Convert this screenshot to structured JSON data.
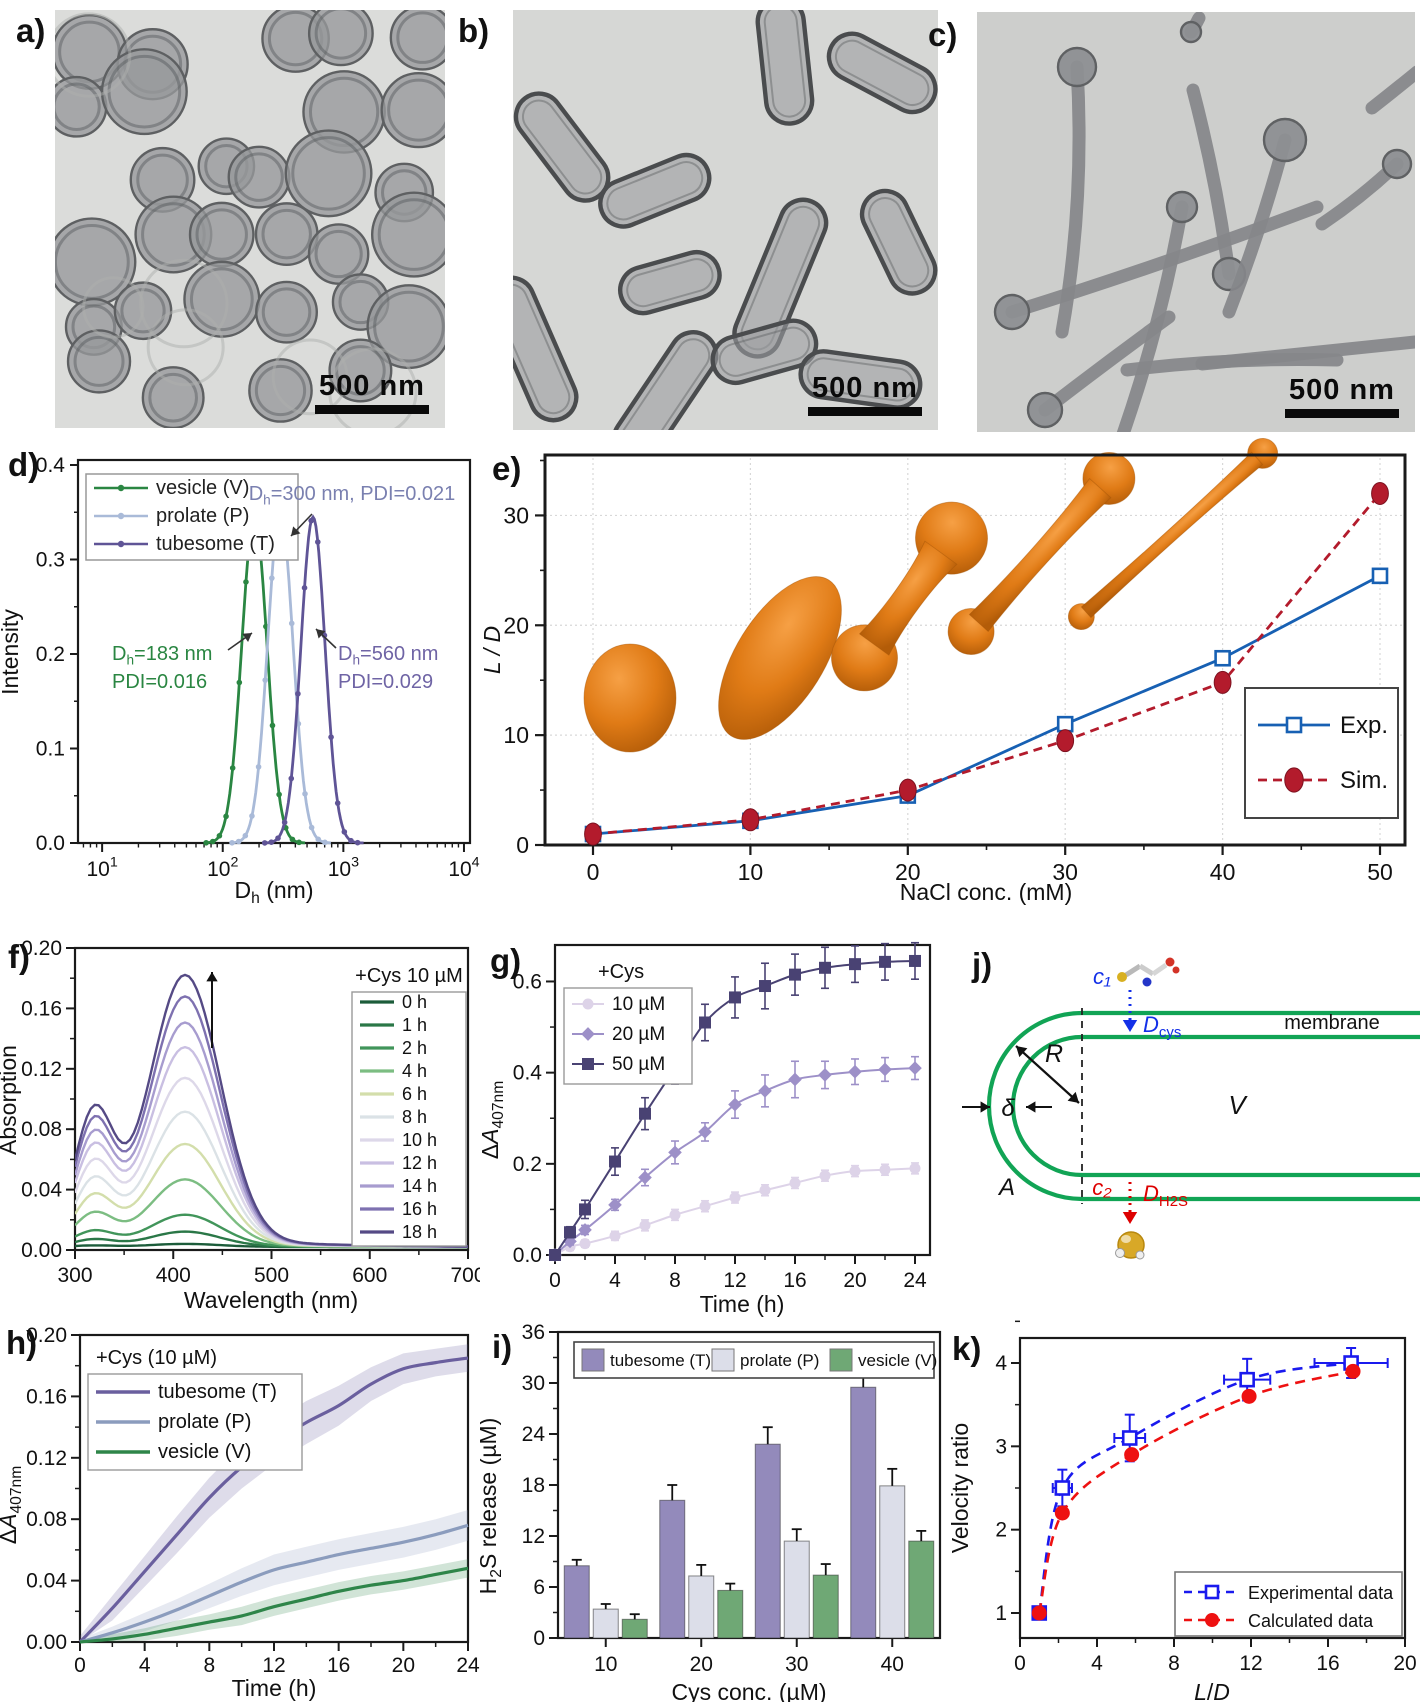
{
  "figure": {
    "panels": {
      "a": {
        "label": "a)",
        "scalebar": "500 nm"
      },
      "b": {
        "label": "b)",
        "scalebar": "500 nm"
      },
      "c": {
        "label": "c)",
        "scalebar": "500 nm"
      },
      "d": {
        "label": "d)"
      },
      "e": {
        "label": "e)"
      },
      "f": {
        "label": "f)"
      },
      "g": {
        "label": "g)"
      },
      "h": {
        "label": "h)"
      },
      "i": {
        "label": "i)"
      },
      "j": {
        "label": "j)"
      },
      "k": {
        "label": "k)"
      }
    }
  },
  "chart_data": [
    {
      "panel": "d",
      "type": "line",
      "xlabel_segments": [
        [
          "D"
        ],
        [
          "h",
          "sub"
        ],
        [
          " (nm)"
        ]
      ],
      "ylabel": "Intensity",
      "xscale": "log",
      "xtick_exponents": [
        1,
        2,
        3,
        4
      ],
      "yticks": [
        "0.0",
        "0.1",
        "0.2",
        "0.3",
        "0.4"
      ],
      "ylim": [
        0,
        0.4
      ],
      "legend_position": "top-left",
      "series": [
        {
          "name": "vesicle (V)",
          "color": "#2a8642",
          "Dh_nm": 183,
          "PDI": 0.016,
          "peak_intensity": 0.345,
          "sigma_log": 0.105
        },
        {
          "name": "prolate (P)",
          "color": "#a9bad8",
          "Dh_nm": 300,
          "PDI": 0.021,
          "peak_intensity": 0.35,
          "sigma_log": 0.105
        },
        {
          "name": "tubesome (T)",
          "color": "#5f5496",
          "Dh_nm": 560,
          "PDI": 0.029,
          "peak_intensity": 0.345,
          "sigma_log": 0.1
        }
      ],
      "annotations": [
        {
          "segments": [
            [
              "D"
            ],
            [
              "h",
              "sub"
            ],
            [
              "=300 nm, PDI=0.021"
            ]
          ],
          "color": "#7a80b0"
        },
        {
          "segments": [
            [
              "D"
            ],
            [
              "h",
              "sub"
            ],
            [
              "=183 nm"
            ]
          ],
          "color": "#2a8642"
        },
        {
          "segments": [
            [
              "PDI=0.016"
            ]
          ],
          "color": "#2a8642"
        },
        {
          "segments": [
            [
              "D"
            ],
            [
              "h",
              "sub"
            ],
            [
              "=560 nm"
            ]
          ],
          "color": "#6f64a5"
        },
        {
          "segments": [
            [
              "PDI=0.029"
            ]
          ],
          "color": "#6f64a5"
        }
      ]
    },
    {
      "panel": "e",
      "type": "line",
      "xlabel": "NaCl conc. (mM)",
      "ylabel": "L / D",
      "xticks": [
        0,
        10,
        20,
        30,
        40,
        50
      ],
      "yticks": [
        0,
        10,
        20,
        30
      ],
      "ylim": [
        0,
        35.5
      ],
      "legend_position": "bottom-right",
      "grid": true,
      "inset_shapes": [
        "sphere",
        "prolate",
        "dumbbell",
        "long-dumbbell",
        "thin-tube"
      ],
      "shape_color": "#e07b16",
      "series": [
        {
          "name": "Exp.",
          "color": "#1760b3",
          "marker": "open-square",
          "line": "solid",
          "points": [
            [
              0,
              1
            ],
            [
              10,
              2.2
            ],
            [
              20,
              4.5
            ],
            [
              30,
              11
            ],
            [
              40,
              17
            ],
            [
              50,
              24.5
            ]
          ]
        },
        {
          "name": "Sim.",
          "color": "#b31b2c",
          "marker": "filled-circle",
          "line": "dashed",
          "points": [
            [
              0,
              1
            ],
            [
              10,
              2.3
            ],
            [
              20,
              5
            ],
            [
              30,
              9.5
            ],
            [
              40,
              14.8
            ],
            [
              50,
              32
            ]
          ]
        }
      ]
    },
    {
      "panel": "f",
      "type": "line",
      "xlabel": "Wavelength (nm)",
      "ylabel": "Absorption",
      "legend_title": "+Cys 10 µM",
      "xticks": [
        300,
        400,
        500,
        600,
        700
      ],
      "yticks": [
        "0.00",
        "0.04",
        "0.08",
        "0.12",
        "0.16",
        "0.20"
      ],
      "xlim": [
        300,
        700
      ],
      "ylim": [
        0,
        0.2
      ],
      "peak_wavelength_nm": 412,
      "secondary_peak_nm": 319,
      "series": [
        {
          "name": "0 h",
          "color": "#1c5c3a",
          "peak_absorption": 0.002
        },
        {
          "name": "1 h",
          "color": "#2a7747",
          "peak_absorption": 0.01
        },
        {
          "name": "2 h",
          "color": "#41955a",
          "peak_absorption": 0.021
        },
        {
          "name": "4 h",
          "color": "#7cbd82",
          "peak_absorption": 0.044
        },
        {
          "name": "6 h",
          "color": "#d3deab",
          "peak_absorption": 0.067
        },
        {
          "name": "8 h",
          "color": "#dbe2e6",
          "peak_absorption": 0.088
        },
        {
          "name": "10 h",
          "color": "#ddd8e9",
          "peak_absorption": 0.11
        },
        {
          "name": "12 h",
          "color": "#c9bfe2",
          "peak_absorption": 0.13
        },
        {
          "name": "14 h",
          "color": "#a79ccf",
          "peak_absorption": 0.146
        },
        {
          "name": "16 h",
          "color": "#7e71b0",
          "peak_absorption": 0.163
        },
        {
          "name": "18 h",
          "color": "#554a85",
          "peak_absorption": 0.177
        }
      ]
    },
    {
      "panel": "g",
      "type": "line",
      "xlabel": "Time (h)",
      "ylabel_segments": [
        [
          "Δ"
        ],
        [
          "A",
          "i"
        ],
        [
          "407nm",
          "sub"
        ]
      ],
      "legend_title": "+Cys",
      "xticks": [
        0,
        4,
        8,
        12,
        16,
        20,
        24
      ],
      "yticks": [
        "0.0",
        "0.2",
        "0.4",
        "0.6"
      ],
      "x": [
        0,
        1,
        2,
        4,
        6,
        8,
        10,
        12,
        14,
        16,
        18,
        20,
        22,
        24
      ],
      "series": [
        {
          "name": "10 µM",
          "color": "#ddd3e8",
          "marker": "circle",
          "values": [
            0,
            0.018,
            0.025,
            0.042,
            0.065,
            0.088,
            0.107,
            0.126,
            0.142,
            0.158,
            0.174,
            0.184,
            0.187,
            0.19
          ],
          "errors": [
            0,
            0.008,
            0.008,
            0.01,
            0.012,
            0.012,
            0.012,
            0.012,
            0.012,
            0.012,
            0.012,
            0.012,
            0.012,
            0.012
          ]
        },
        {
          "name": "20 µM",
          "color": "#9d90c8",
          "marker": "diamond",
          "values": [
            0,
            0.03,
            0.055,
            0.11,
            0.17,
            0.225,
            0.27,
            0.33,
            0.36,
            0.385,
            0.395,
            0.402,
            0.407,
            0.41
          ],
          "errors": [
            0,
            0.008,
            0.01,
            0.012,
            0.018,
            0.025,
            0.02,
            0.03,
            0.035,
            0.04,
            0.03,
            0.028,
            0.026,
            0.025
          ]
        },
        {
          "name": "50 µM",
          "color": "#494273",
          "marker": "square",
          "values": [
            0,
            0.05,
            0.1,
            0.205,
            0.31,
            0.41,
            0.51,
            0.565,
            0.59,
            0.615,
            0.63,
            0.638,
            0.643,
            0.645
          ],
          "errors": [
            0,
            0.012,
            0.02,
            0.03,
            0.035,
            0.035,
            0.04,
            0.045,
            0.05,
            0.045,
            0.045,
            0.04,
            0.04,
            0.04
          ]
        }
      ]
    },
    {
      "panel": "h",
      "type": "line",
      "xlabel": "Time (h)",
      "ylabel_segments": [
        [
          "Δ"
        ],
        [
          "A",
          "i"
        ],
        [
          "407nm",
          "sub"
        ]
      ],
      "legend_title": "+Cys (10 µM)",
      "xticks": [
        0,
        4,
        8,
        12,
        16,
        20,
        24
      ],
      "yticks": [
        "0.00",
        "0.04",
        "0.08",
        "0.12",
        "0.16",
        "0.20"
      ],
      "x": [
        0,
        2,
        4,
        6,
        8,
        10,
        12,
        14,
        16,
        18,
        20,
        22,
        24
      ],
      "series": [
        {
          "name": "tubesome (T)",
          "color": "#6a5f9e",
          "values": [
            0,
            0.022,
            0.046,
            0.07,
            0.094,
            0.114,
            0.13,
            0.143,
            0.154,
            0.168,
            0.178,
            0.182,
            0.185
          ],
          "band": [
            0.004,
            0.008,
            0.01,
            0.012,
            0.013,
            0.014,
            0.014,
            0.014,
            0.013,
            0.011,
            0.01,
            0.009,
            0.009
          ]
        },
        {
          "name": "prolate (P)",
          "color": "#8b9cbd",
          "values": [
            0,
            0.006,
            0.013,
            0.021,
            0.03,
            0.039,
            0.047,
            0.052,
            0.057,
            0.061,
            0.065,
            0.07,
            0.076
          ],
          "band": [
            0.002,
            0.004,
            0.006,
            0.007,
            0.008,
            0.009,
            0.01,
            0.01,
            0.01,
            0.01,
            0.01,
            0.01,
            0.01
          ]
        },
        {
          "name": "vesicle (V)",
          "color": "#2e8549",
          "values": [
            0,
            0.002,
            0.005,
            0.009,
            0.013,
            0.017,
            0.023,
            0.028,
            0.033,
            0.037,
            0.04,
            0.044,
            0.048
          ],
          "band": [
            0.001,
            0.003,
            0.004,
            0.005,
            0.005,
            0.006,
            0.006,
            0.006,
            0.006,
            0.006,
            0.006,
            0.006,
            0.006
          ]
        }
      ]
    },
    {
      "panel": "i",
      "type": "bar",
      "xlabel": "Cys conc. (µM)",
      "ylabel_segments": [
        [
          "H"
        ],
        [
          "2",
          "sub"
        ],
        [
          "S release (µM)"
        ]
      ],
      "categories": [
        10,
        20,
        30,
        40
      ],
      "yticks": [
        0,
        6,
        12,
        18,
        24,
        30,
        36
      ],
      "ylim": [
        0,
        36
      ],
      "series": [
        {
          "name": "tubesome (T)",
          "color": "#938abb",
          "values": [
            8.5,
            16.2,
            22.8,
            29.5
          ],
          "errors": [
            0.7,
            1.8,
            2.0,
            2.4
          ]
        },
        {
          "name": "prolate (P)",
          "color": "#dcdee9",
          "values": [
            3.4,
            7.3,
            11.4,
            17.9
          ],
          "errors": [
            0.6,
            1.3,
            1.4,
            2.0
          ]
        },
        {
          "name": "vesicle (V)",
          "color": "#6fa875",
          "values": [
            2.2,
            5.6,
            7.4,
            11.4
          ],
          "errors": [
            0.6,
            0.8,
            1.3,
            1.2
          ]
        }
      ]
    },
    {
      "panel": "k",
      "type": "scatter",
      "xlabel_segments": [
        [
          "L",
          "i"
        ],
        [
          "/"
        ],
        [
          "D",
          "i"
        ]
      ],
      "ylabel": "Velocity ratio",
      "xticks": [
        0,
        4,
        8,
        12,
        16,
        20
      ],
      "yticks": [
        1,
        2,
        3,
        4
      ],
      "legend_position": "bottom-right",
      "series": [
        {
          "name": "Experimental data",
          "color": "#1a1aee",
          "marker": "open-square",
          "line": "dashed",
          "points": [
            [
              1,
              1
            ],
            [
              2.2,
              2.5
            ],
            [
              5.7,
              3.1
            ],
            [
              11.8,
              3.8
            ],
            [
              17.2,
              4.0
            ]
          ],
          "yerr": [
            0,
            0.22,
            0.28,
            0.25,
            0.18
          ],
          "xerr": [
            0,
            0.5,
            0.8,
            1.2,
            1.9
          ]
        },
        {
          "name": "Calculated data",
          "color": "#ee1111",
          "marker": "filled-circle",
          "line": "dashed",
          "points": [
            [
              1,
              1
            ],
            [
              2.2,
              2.2
            ],
            [
              5.8,
              2.9
            ],
            [
              11.9,
              3.6
            ],
            [
              17.3,
              3.9
            ]
          ]
        }
      ]
    }
  ],
  "diagram_j": {
    "membrane_color": "#11a455",
    "c1_color": "#1330e8",
    "c2_color": "#dd0000",
    "labels": {
      "c1": "c₁",
      "c2": "c₂",
      "Dcys_main": "D",
      "Dcys_sub": "cys",
      "DH2S_main": "D",
      "DH2S_sub": "H2S",
      "membrane": "membrane",
      "R": "R",
      "delta": "δ",
      "V": "V",
      "A": "A"
    }
  }
}
